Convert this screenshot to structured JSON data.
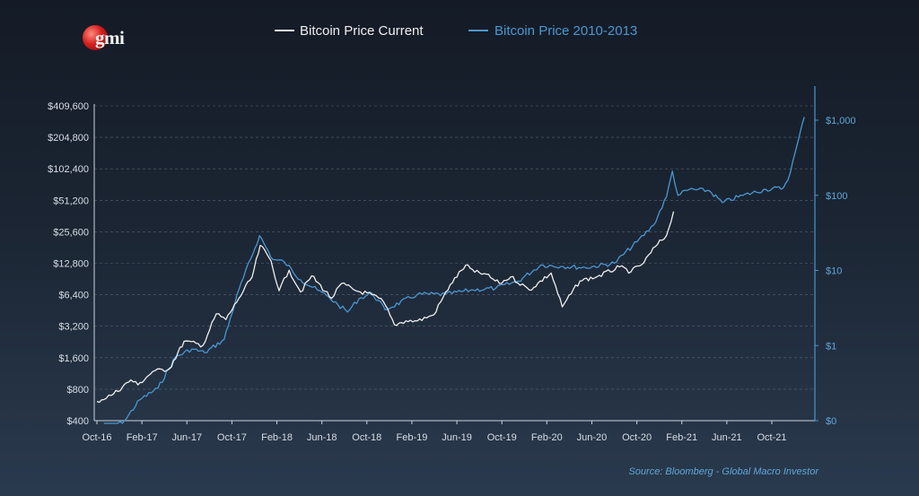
{
  "logo": {
    "text": "gmi"
  },
  "source_note": "Source: Bloomberg - Global Macro Investor",
  "colors": {
    "current": "#eeeeee",
    "historical": "#4a97d2",
    "background": "#1b2533",
    "grid": "#5a6678"
  },
  "chart_data": {
    "type": "line",
    "title": "",
    "legend": {
      "placement": "top-center",
      "entries": [
        "Bitcoin Price Current",
        "Bitcoin Price 2010-2013"
      ]
    },
    "x_tick_labels": [
      "Oct-16",
      "Feb-17",
      "Jun-17",
      "Oct-17",
      "Feb-18",
      "Jun-18",
      "Oct-18",
      "Feb-19",
      "Jun-19",
      "Oct-19",
      "Feb-20",
      "Jun-20",
      "Oct-20",
      "Feb-21",
      "Jun-21",
      "Oct-21"
    ],
    "x_range": [
      "2016-10-01",
      "2022-01-01"
    ],
    "y_left": {
      "scale": "log2",
      "range": [
        400,
        409600
      ],
      "tick_values": [
        400,
        800,
        1600,
        3200,
        6400,
        12800,
        25600,
        51200,
        102400,
        204800,
        409600
      ],
      "tick_labels": [
        "$400",
        "$800",
        "$1,600",
        "$3,200",
        "$6,400",
        "$12,800",
        "$25,600",
        "$51,200",
        "$102,400",
        "$204,800",
        "$409,600"
      ]
    },
    "y_right": {
      "scale": "log10",
      "tick_labels": [
        "$0",
        "$1",
        "$10",
        "$100",
        "$1,000"
      ],
      "tick_values": [
        0.1,
        1,
        10,
        100,
        1000
      ],
      "range": [
        0.1,
        2000
      ]
    },
    "grid": true,
    "series": [
      {
        "name": "Bitcoin Price Current",
        "axis": "left",
        "color": "#eeeeee",
        "points": [
          [
            "2016-10-01",
            610
          ],
          [
            "2016-11-15",
            720
          ],
          [
            "2017-01-01",
            980
          ],
          [
            "2017-01-20",
            880
          ],
          [
            "2017-03-01",
            1180
          ],
          [
            "2017-04-15",
            1250
          ],
          [
            "2017-05-25",
            2300
          ],
          [
            "2017-07-15",
            2100
          ],
          [
            "2017-08-20",
            4200
          ],
          [
            "2017-09-15",
            3700
          ],
          [
            "2017-10-20",
            5900
          ],
          [
            "2017-11-25",
            9500
          ],
          [
            "2017-12-17",
            19000
          ],
          [
            "2018-01-15",
            13500
          ],
          [
            "2018-02-06",
            7000
          ],
          [
            "2018-03-05",
            11000
          ],
          [
            "2018-04-05",
            6800
          ],
          [
            "2018-05-05",
            9700
          ],
          [
            "2018-06-28",
            5900
          ],
          [
            "2018-07-25",
            8200
          ],
          [
            "2018-09-01",
            7000
          ],
          [
            "2018-10-15",
            6400
          ],
          [
            "2018-11-15",
            5500
          ],
          [
            "2018-12-15",
            3300
          ],
          [
            "2019-01-15",
            3600
          ],
          [
            "2019-02-15",
            3600
          ],
          [
            "2019-03-31",
            4100
          ],
          [
            "2019-05-15",
            8000
          ],
          [
            "2019-06-26",
            12300
          ],
          [
            "2019-07-20",
            10500
          ],
          [
            "2019-08-15",
            10200
          ],
          [
            "2019-09-25",
            8200
          ],
          [
            "2019-10-26",
            9500
          ],
          [
            "2019-12-15",
            7100
          ],
          [
            "2020-02-12",
            10300
          ],
          [
            "2020-03-13",
            4900
          ],
          [
            "2020-04-30",
            8700
          ],
          [
            "2020-06-15",
            9500
          ],
          [
            "2020-08-15",
            11800
          ],
          [
            "2020-09-15",
            10600
          ],
          [
            "2020-10-20",
            13000
          ],
          [
            "2020-11-20",
            18500
          ],
          [
            "2020-12-20",
            23500
          ],
          [
            "2021-01-08",
            40000
          ]
        ]
      },
      {
        "name": "Bitcoin Price 2010-2013",
        "axis": "right",
        "color": "#4a97d2",
        "points": [
          [
            "2016-10-20",
            0.07
          ],
          [
            "2016-12-15",
            0.1
          ],
          [
            "2017-01-25",
            0.19
          ],
          [
            "2017-03-15",
            0.27
          ],
          [
            "2017-05-01",
            0.7
          ],
          [
            "2017-06-15",
            0.9
          ],
          [
            "2017-07-20",
            0.8
          ],
          [
            "2017-09-10",
            1.2
          ],
          [
            "2017-10-20",
            5.5
          ],
          [
            "2017-12-15",
            29
          ],
          [
            "2018-01-20",
            14
          ],
          [
            "2018-02-20",
            13
          ],
          [
            "2018-04-05",
            7.5
          ],
          [
            "2018-05-20",
            5.5
          ],
          [
            "2018-06-15",
            4.6
          ],
          [
            "2018-07-15",
            3.5
          ],
          [
            "2018-08-10",
            2.8
          ],
          [
            "2018-09-10",
            4.2
          ],
          [
            "2018-10-15",
            5.0
          ],
          [
            "2018-11-20",
            3.0
          ],
          [
            "2019-02-15",
            4.8
          ],
          [
            "2019-05-01",
            4.8
          ],
          [
            "2019-07-15",
            5.5
          ],
          [
            "2019-09-15",
            5.8
          ],
          [
            "2019-11-15",
            7.2
          ],
          [
            "2020-01-15",
            11.8
          ],
          [
            "2020-03-15",
            11.3
          ],
          [
            "2020-05-15",
            10.9
          ],
          [
            "2020-08-01",
            12.5
          ],
          [
            "2020-10-01",
            24
          ],
          [
            "2020-11-15",
            40
          ],
          [
            "2020-12-20",
            95
          ],
          [
            "2021-01-05",
            210
          ],
          [
            "2021-01-20",
            100
          ],
          [
            "2021-02-20",
            120
          ],
          [
            "2021-04-15",
            115
          ],
          [
            "2021-05-20",
            80
          ],
          [
            "2021-07-15",
            100
          ],
          [
            "2021-09-15",
            120
          ],
          [
            "2021-11-01",
            125
          ],
          [
            "2021-11-20",
            200
          ],
          [
            "2021-12-10",
            500
          ],
          [
            "2021-12-28",
            1100
          ]
        ]
      }
    ]
  }
}
